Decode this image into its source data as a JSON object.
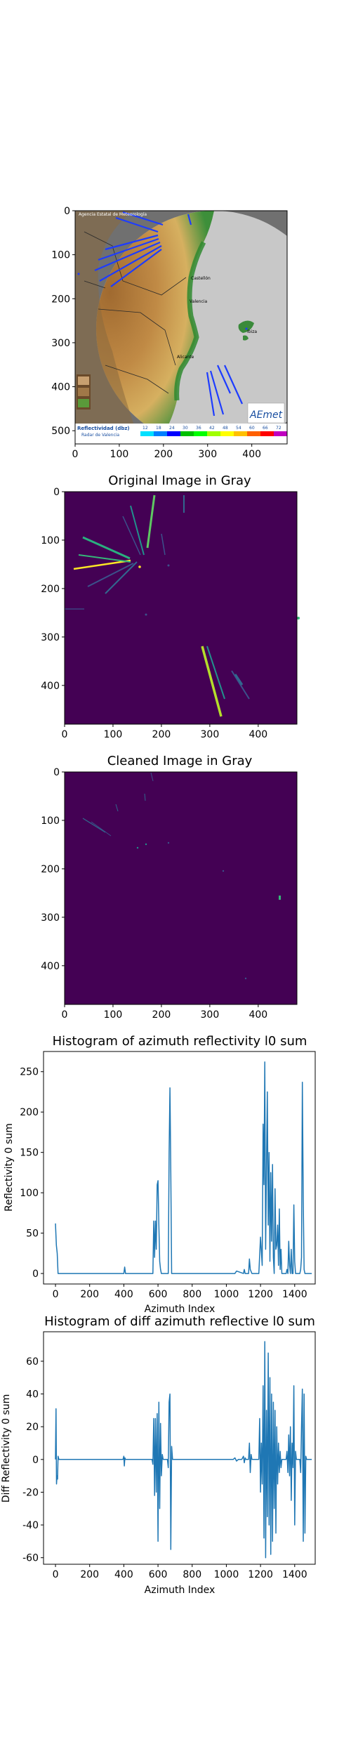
{
  "panels": {
    "radar": {
      "xticks": [
        "0",
        "100",
        "200",
        "300",
        "400"
      ],
      "yticks": [
        "0",
        "100",
        "200",
        "300",
        "400",
        "500"
      ],
      "xlim": [
        0,
        480
      ],
      "ylim": [
        530,
        0
      ],
      "overlay": {
        "agency": "Agencia Estatal de Meteorología",
        "legend_title": "Reflectividad (dbz)",
        "legend_subtitle": "Radar de Valencia",
        "legend_values": [
          "12",
          "18",
          "24",
          "30",
          "36",
          "42",
          "48",
          "54",
          "60",
          "66",
          "72"
        ],
        "legend_colors": [
          "#00e0ff",
          "#0080ff",
          "#0000ff",
          "#00c000",
          "#00ff00",
          "#a0ff00",
          "#ffff00",
          "#ffc000",
          "#ff6000",
          "#ff0000",
          "#c000c0"
        ],
        "logo": "AEmet",
        "cities": [
          "Castellón",
          "Valencia",
          "Alicante",
          "Ibiza"
        ]
      },
      "colors": {
        "sea_circle": "#c8c8c8",
        "outside": "#707070",
        "coast": "#3a8a3a",
        "land": "#b07a3a"
      }
    },
    "original": {
      "title": "Original Image in Gray",
      "xticks": [
        "0",
        "100",
        "200",
        "300",
        "400"
      ],
      "yticks": [
        "0",
        "100",
        "200",
        "300",
        "400"
      ],
      "xlim": [
        0,
        480
      ],
      "ylim": [
        480,
        0
      ],
      "background": "#440154"
    },
    "cleaned": {
      "title": "Cleaned Image in Gray",
      "xticks": [
        "0",
        "100",
        "200",
        "300",
        "400"
      ],
      "yticks": [
        "0",
        "100",
        "200",
        "300",
        "400"
      ],
      "xlim": [
        0,
        480
      ],
      "ylim": [
        480,
        0
      ],
      "background": "#440154"
    }
  },
  "chart_data": [
    {
      "type": "line",
      "title": "Histogram of azimuth reflectivity l0 sum",
      "xlabel": "Azimuth Index",
      "ylabel": "Reflectivity 0 sum",
      "xlim": [
        -70,
        1520
      ],
      "ylim": [
        -13,
        275
      ],
      "xticks": [
        0,
        200,
        400,
        600,
        800,
        1000,
        1200,
        1400
      ],
      "yticks": [
        0,
        50,
        100,
        150,
        200,
        250
      ],
      "color": "#1f77b4",
      "x": [
        0,
        5,
        10,
        15,
        20,
        400,
        405,
        410,
        570,
        575,
        580,
        585,
        590,
        595,
        600,
        605,
        610,
        615,
        620,
        625,
        660,
        665,
        670,
        675,
        680,
        1050,
        1060,
        1100,
        1105,
        1110,
        1130,
        1135,
        1140,
        1150,
        1160,
        1190,
        1200,
        1210,
        1215,
        1220,
        1225,
        1230,
        1235,
        1240,
        1245,
        1250,
        1255,
        1260,
        1265,
        1270,
        1275,
        1280,
        1285,
        1290,
        1295,
        1300,
        1305,
        1310,
        1315,
        1320,
        1325,
        1330,
        1335,
        1340,
        1345,
        1350,
        1355,
        1360,
        1365,
        1370,
        1375,
        1380,
        1385,
        1390,
        1395,
        1400,
        1405,
        1410,
        1420,
        1430,
        1435,
        1440,
        1445,
        1450,
        1455,
        1460,
        1465,
        1470,
        1480,
        1490,
        1500
      ],
      "y": [
        62,
        35,
        25,
        0,
        0,
        0,
        8,
        0,
        0,
        65,
        20,
        65,
        30,
        110,
        115,
        60,
        15,
        5,
        0,
        0,
        0,
        150,
        230,
        125,
        0,
        0,
        3,
        0,
        5,
        0,
        0,
        18,
        5,
        0,
        0,
        0,
        45,
        10,
        185,
        110,
        262,
        30,
        130,
        225,
        60,
        150,
        15,
        125,
        40,
        135,
        20,
        0,
        105,
        30,
        35,
        60,
        10,
        80,
        5,
        30,
        0,
        0,
        0,
        0,
        0,
        0,
        5,
        0,
        40,
        10,
        0,
        30,
        0,
        0,
        85,
        15,
        0,
        0,
        0,
        0,
        5,
        20,
        237,
        90,
        5,
        0,
        0,
        0,
        0,
        0,
        0
      ]
    },
    {
      "type": "line",
      "title": "Histogram of diff azimuth reflective l0 sum",
      "xlabel": "Azimuth Index",
      "ylabel": "Diff Reflectivity 0 sum",
      "xlim": [
        -70,
        1520
      ],
      "ylim": [
        -64,
        78
      ],
      "xticks": [
        0,
        200,
        400,
        600,
        800,
        1000,
        1200,
        1400
      ],
      "yticks": [
        -60,
        -40,
        -20,
        0,
        20,
        40,
        60
      ],
      "color": "#1f77b4",
      "x": [
        0,
        3,
        6,
        9,
        12,
        15,
        20,
        395,
        400,
        403,
        406,
        410,
        565,
        570,
        575,
        580,
        585,
        590,
        595,
        600,
        605,
        610,
        615,
        620,
        625,
        630,
        655,
        660,
        665,
        670,
        675,
        680,
        685,
        1040,
        1050,
        1060,
        1070,
        1090,
        1100,
        1105,
        1110,
        1115,
        1130,
        1135,
        1140,
        1145,
        1150,
        1160,
        1180,
        1190,
        1195,
        1200,
        1205,
        1210,
        1215,
        1220,
        1225,
        1230,
        1235,
        1240,
        1245,
        1250,
        1255,
        1260,
        1265,
        1270,
        1275,
        1280,
        1285,
        1290,
        1295,
        1300,
        1305,
        1310,
        1315,
        1320,
        1325,
        1330,
        1340,
        1350,
        1355,
        1360,
        1365,
        1370,
        1375,
        1380,
        1385,
        1390,
        1395,
        1400,
        1405,
        1410,
        1420,
        1430,
        1435,
        1440,
        1445,
        1450,
        1455,
        1460,
        1465,
        1470,
        1480,
        1500
      ],
      "y": [
        0,
        31,
        -15,
        -10,
        -12,
        2,
        0,
        0,
        2,
        -4,
        1,
        0,
        0,
        -3,
        25,
        -22,
        25,
        -20,
        28,
        -50,
        35,
        -30,
        22,
        -10,
        3,
        0,
        0,
        -5,
        35,
        40,
        -55,
        8,
        0,
        0,
        1,
        -1,
        0,
        0,
        2,
        -2,
        1,
        0,
        0,
        10,
        -8,
        3,
        0,
        0,
        0,
        0,
        25,
        -20,
        10,
        -15,
        45,
        -48,
        72,
        -60,
        30,
        -35,
        65,
        -40,
        50,
        -58,
        40,
        -50,
        35,
        -30,
        30,
        -45,
        20,
        -15,
        10,
        -8,
        5,
        -5,
        0,
        0,
        0,
        0,
        5,
        -8,
        15,
        -10,
        20,
        -25,
        10,
        -5,
        45,
        -40,
        5,
        0,
        0,
        0,
        -8,
        20,
        43,
        -50,
        40,
        -45,
        2,
        0,
        0,
        0
      ]
    }
  ]
}
